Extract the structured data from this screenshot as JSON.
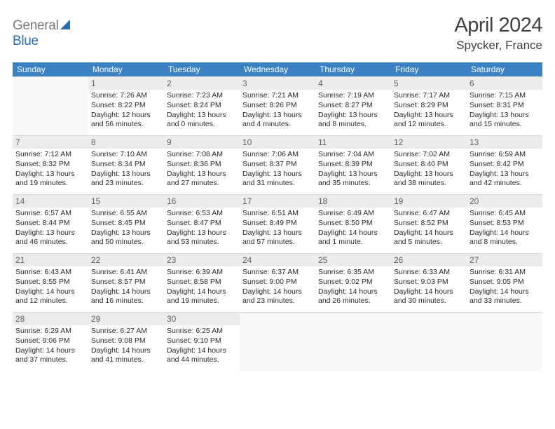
{
  "logo": {
    "part1": "General",
    "part2": "Blue"
  },
  "title": {
    "month": "April 2024",
    "location": "Spycker, France"
  },
  "colors": {
    "header_bg": "#3b82c4",
    "header_fg": "#ffffff",
    "daynum_bg": "#ececec",
    "border": "#d8d8d8",
    "blank_bg": "#f7f7f7"
  },
  "dow": [
    "Sunday",
    "Monday",
    "Tuesday",
    "Wednesday",
    "Thursday",
    "Friday",
    "Saturday"
  ],
  "layout": {
    "leading_blanks": 1,
    "trailing_blanks": 4
  },
  "days": [
    {
      "n": "1",
      "sr": "Sunrise: 7:26 AM",
      "ss": "Sunset: 8:22 PM",
      "dl": "Daylight: 12 hours and 56 minutes."
    },
    {
      "n": "2",
      "sr": "Sunrise: 7:23 AM",
      "ss": "Sunset: 8:24 PM",
      "dl": "Daylight: 13 hours and 0 minutes."
    },
    {
      "n": "3",
      "sr": "Sunrise: 7:21 AM",
      "ss": "Sunset: 8:26 PM",
      "dl": "Daylight: 13 hours and 4 minutes."
    },
    {
      "n": "4",
      "sr": "Sunrise: 7:19 AM",
      "ss": "Sunset: 8:27 PM",
      "dl": "Daylight: 13 hours and 8 minutes."
    },
    {
      "n": "5",
      "sr": "Sunrise: 7:17 AM",
      "ss": "Sunset: 8:29 PM",
      "dl": "Daylight: 13 hours and 12 minutes."
    },
    {
      "n": "6",
      "sr": "Sunrise: 7:15 AM",
      "ss": "Sunset: 8:31 PM",
      "dl": "Daylight: 13 hours and 15 minutes."
    },
    {
      "n": "7",
      "sr": "Sunrise: 7:12 AM",
      "ss": "Sunset: 8:32 PM",
      "dl": "Daylight: 13 hours and 19 minutes."
    },
    {
      "n": "8",
      "sr": "Sunrise: 7:10 AM",
      "ss": "Sunset: 8:34 PM",
      "dl": "Daylight: 13 hours and 23 minutes."
    },
    {
      "n": "9",
      "sr": "Sunrise: 7:08 AM",
      "ss": "Sunset: 8:36 PM",
      "dl": "Daylight: 13 hours and 27 minutes."
    },
    {
      "n": "10",
      "sr": "Sunrise: 7:06 AM",
      "ss": "Sunset: 8:37 PM",
      "dl": "Daylight: 13 hours and 31 minutes."
    },
    {
      "n": "11",
      "sr": "Sunrise: 7:04 AM",
      "ss": "Sunset: 8:39 PM",
      "dl": "Daylight: 13 hours and 35 minutes."
    },
    {
      "n": "12",
      "sr": "Sunrise: 7:02 AM",
      "ss": "Sunset: 8:40 PM",
      "dl": "Daylight: 13 hours and 38 minutes."
    },
    {
      "n": "13",
      "sr": "Sunrise: 6:59 AM",
      "ss": "Sunset: 8:42 PM",
      "dl": "Daylight: 13 hours and 42 minutes."
    },
    {
      "n": "14",
      "sr": "Sunrise: 6:57 AM",
      "ss": "Sunset: 8:44 PM",
      "dl": "Daylight: 13 hours and 46 minutes."
    },
    {
      "n": "15",
      "sr": "Sunrise: 6:55 AM",
      "ss": "Sunset: 8:45 PM",
      "dl": "Daylight: 13 hours and 50 minutes."
    },
    {
      "n": "16",
      "sr": "Sunrise: 6:53 AM",
      "ss": "Sunset: 8:47 PM",
      "dl": "Daylight: 13 hours and 53 minutes."
    },
    {
      "n": "17",
      "sr": "Sunrise: 6:51 AM",
      "ss": "Sunset: 8:49 PM",
      "dl": "Daylight: 13 hours and 57 minutes."
    },
    {
      "n": "18",
      "sr": "Sunrise: 6:49 AM",
      "ss": "Sunset: 8:50 PM",
      "dl": "Daylight: 14 hours and 1 minute."
    },
    {
      "n": "19",
      "sr": "Sunrise: 6:47 AM",
      "ss": "Sunset: 8:52 PM",
      "dl": "Daylight: 14 hours and 5 minutes."
    },
    {
      "n": "20",
      "sr": "Sunrise: 6:45 AM",
      "ss": "Sunset: 8:53 PM",
      "dl": "Daylight: 14 hours and 8 minutes."
    },
    {
      "n": "21",
      "sr": "Sunrise: 6:43 AM",
      "ss": "Sunset: 8:55 PM",
      "dl": "Daylight: 14 hours and 12 minutes."
    },
    {
      "n": "22",
      "sr": "Sunrise: 6:41 AM",
      "ss": "Sunset: 8:57 PM",
      "dl": "Daylight: 14 hours and 16 minutes."
    },
    {
      "n": "23",
      "sr": "Sunrise: 6:39 AM",
      "ss": "Sunset: 8:58 PM",
      "dl": "Daylight: 14 hours and 19 minutes."
    },
    {
      "n": "24",
      "sr": "Sunrise: 6:37 AM",
      "ss": "Sunset: 9:00 PM",
      "dl": "Daylight: 14 hours and 23 minutes."
    },
    {
      "n": "25",
      "sr": "Sunrise: 6:35 AM",
      "ss": "Sunset: 9:02 PM",
      "dl": "Daylight: 14 hours and 26 minutes."
    },
    {
      "n": "26",
      "sr": "Sunrise: 6:33 AM",
      "ss": "Sunset: 9:03 PM",
      "dl": "Daylight: 14 hours and 30 minutes."
    },
    {
      "n": "27",
      "sr": "Sunrise: 6:31 AM",
      "ss": "Sunset: 9:05 PM",
      "dl": "Daylight: 14 hours and 33 minutes."
    },
    {
      "n": "28",
      "sr": "Sunrise: 6:29 AM",
      "ss": "Sunset: 9:06 PM",
      "dl": "Daylight: 14 hours and 37 minutes."
    },
    {
      "n": "29",
      "sr": "Sunrise: 6:27 AM",
      "ss": "Sunset: 9:08 PM",
      "dl": "Daylight: 14 hours and 41 minutes."
    },
    {
      "n": "30",
      "sr": "Sunrise: 6:25 AM",
      "ss": "Sunset: 9:10 PM",
      "dl": "Daylight: 14 hours and 44 minutes."
    }
  ]
}
